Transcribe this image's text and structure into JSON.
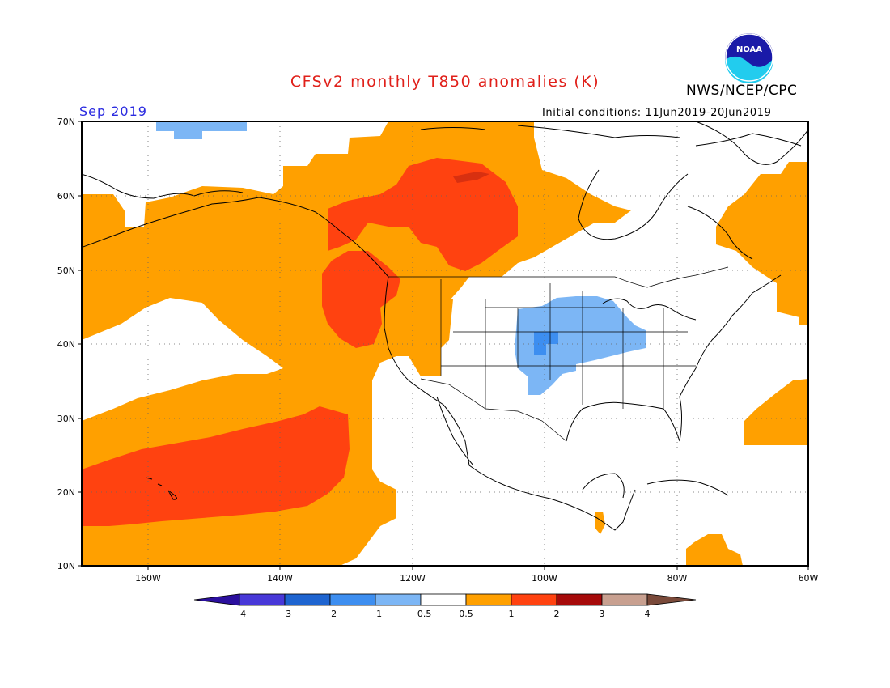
{
  "header": {
    "title": "CFSv2 monthly T850 anomalies (K)",
    "org": "NWS/NCEP/CPC",
    "period": "Sep 2019",
    "initial_conditions": "Initial conditions: 11Jun2019-20Jun2019",
    "logo_text": "NOAA"
  },
  "map": {
    "lat_labels": [
      "70N",
      "60N",
      "50N",
      "40N",
      "30N",
      "20N",
      "10N"
    ],
    "lon_labels": [
      "160W",
      "140W",
      "120W",
      "100W",
      "80W",
      "60W"
    ]
  },
  "legend": {
    "labels": [
      "−4",
      "−3",
      "−2",
      "−1",
      "−0.5",
      "0.5",
      "1",
      "2",
      "3",
      "4"
    ],
    "colors": [
      "#2b0f9e",
      "#4838d8",
      "#1e64d0",
      "#3d8ef0",
      "#7cb6f5",
      "#ffffff",
      "#ffa000",
      "#ff4210",
      "#a60a0a",
      "#c8a090",
      "#7a4a3a"
    ]
  }
}
